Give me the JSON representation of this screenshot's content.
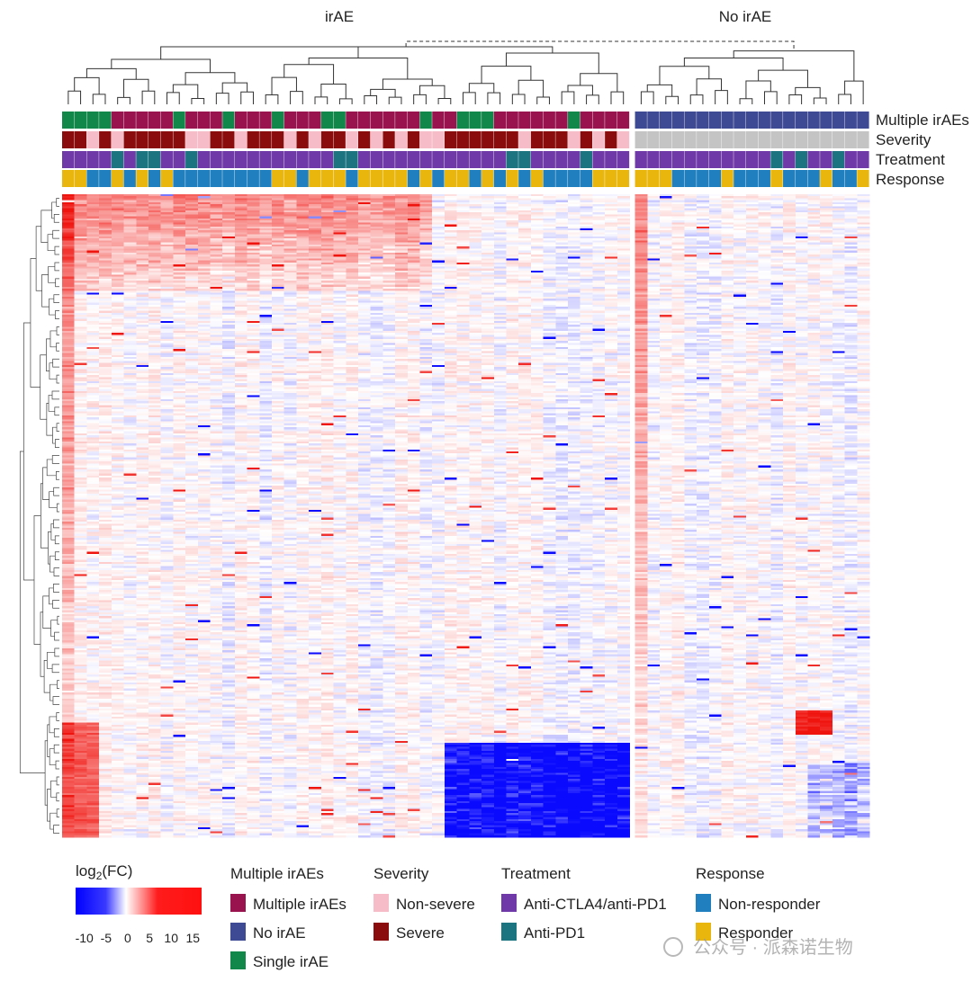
{
  "chart_data": {
    "type": "heatmap",
    "groups": [
      "irAE",
      "No irAE"
    ],
    "annotation_rows": [
      "Multiple irAEs",
      "Severity",
      "Treatment",
      "Response"
    ],
    "color_scale": {
      "title_base": "log",
      "title_sub": "2",
      "title_rest": "(FC)",
      "ticks": [
        "-10",
        "-5",
        "0",
        "5",
        "10",
        "15"
      ],
      "min": -12,
      "max": 17,
      "colors": {
        "low": "#0b0bf5",
        "mid": "#ffffff",
        "high": "#f01010"
      }
    },
    "legends": [
      {
        "title": "Multiple irAEs",
        "items": [
          {
            "label": "Multiple irAEs",
            "color": "#99134f"
          },
          {
            "label": "No irAE",
            "color": "#3e4a93"
          },
          {
            "label": "Single irAE",
            "color": "#12874a"
          }
        ]
      },
      {
        "title": "Severity",
        "items": [
          {
            "label": "Non-severe",
            "color": "#f6bcc8"
          },
          {
            "label": "Severe",
            "color": "#8b0c0c"
          }
        ]
      },
      {
        "title": "Treatment",
        "items": [
          {
            "label": "Anti-CTLA4/anti-PD1",
            "color": "#7039a8"
          },
          {
            "label": "Anti-PD1",
            "color": "#1b7480"
          }
        ]
      },
      {
        "title": "Response",
        "items": [
          {
            "label": "Non-responder",
            "color": "#1f7fbf"
          },
          {
            "label": "Responder",
            "color": "#e9b60e"
          }
        ]
      }
    ],
    "samples": {
      "irAE_count": 46,
      "no_irAE_count": 19,
      "none_severity_color": "#c4c4c4"
    },
    "proteins_count": 320
  },
  "watermark": "公众号 · 派森诺生物"
}
